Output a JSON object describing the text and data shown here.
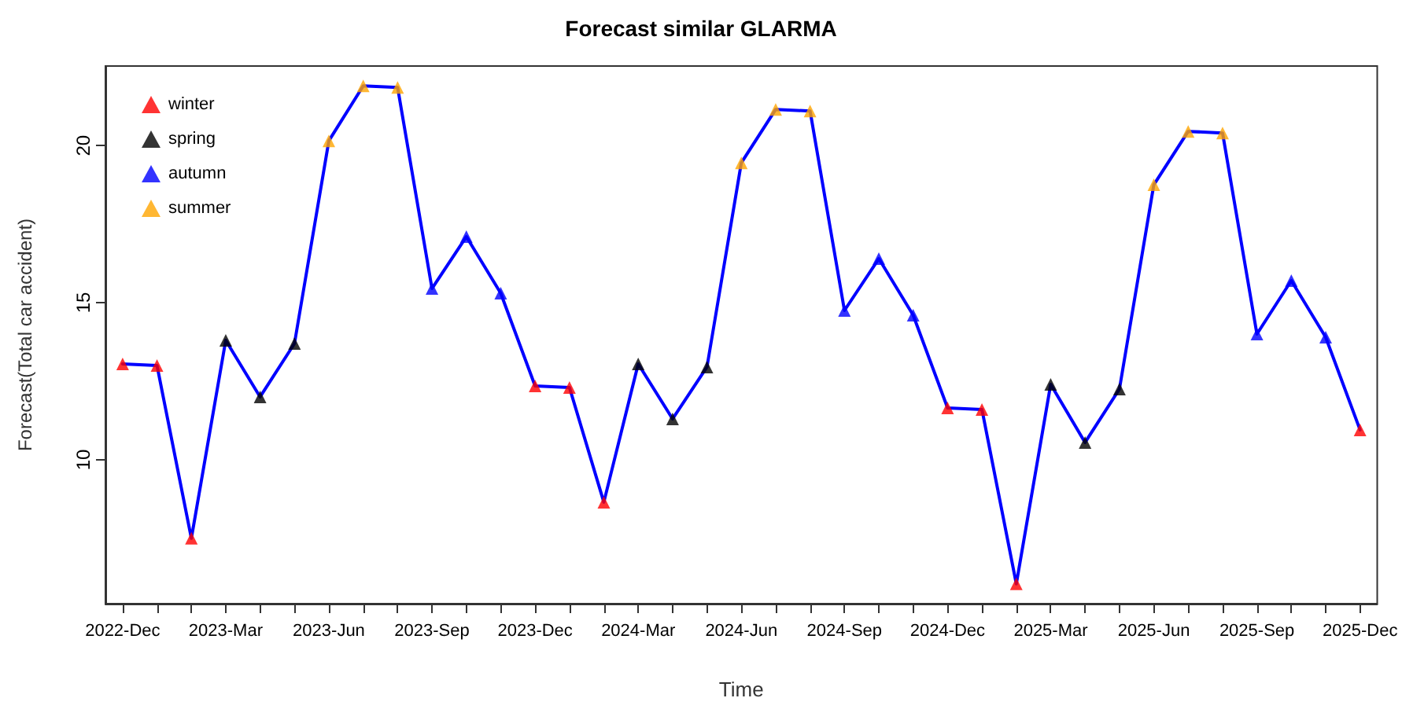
{
  "chart_data": {
    "type": "line",
    "title": "Forecast similar GLARMA",
    "xlabel": "Time",
    "ylabel": "Forecast(Total car accident)",
    "categories": [
      "2022-Dec",
      null,
      null,
      "2023-Mar",
      null,
      null,
      "2023-Jun",
      null,
      null,
      "2023-Sep",
      null,
      null,
      "2023-Dec",
      null,
      null,
      "2024-Mar",
      null,
      null,
      "2024-Jun",
      null,
      null,
      "2024-Sep",
      null,
      null,
      "2024-Dec",
      null,
      null,
      "2025-Mar",
      null,
      null,
      "2025-Jun",
      null,
      null,
      "2025-Sep",
      null,
      null,
      "2025-Dec"
    ],
    "series": [
      {
        "color": "#0000ff",
        "marker": "none",
        "values": [
          13.05,
          13.0,
          7.5,
          13.8,
          12.0,
          13.7,
          20.15,
          21.9,
          21.85,
          15.45,
          17.1,
          15.3,
          12.35,
          12.3,
          8.65,
          13.05,
          11.3,
          12.95,
          19.45,
          21.15,
          21.1,
          14.75,
          16.4,
          14.6,
          11.65,
          11.6,
          6.05,
          12.4,
          10.55,
          12.25,
          18.75,
          20.45,
          20.4,
          14.0,
          15.7,
          13.9,
          10.95
        ]
      },
      {
        "type": "scatter",
        "name": "winter",
        "color": "#ff0000",
        "marker": "triangle",
        "values": [
          13.05,
          13.0,
          7.5,
          null,
          null,
          null,
          null,
          null,
          null,
          null,
          null,
          null,
          12.35,
          12.3,
          8.65,
          null,
          null,
          null,
          null,
          null,
          null,
          null,
          null,
          null,
          11.65,
          11.6,
          6.05,
          null,
          null,
          null,
          null,
          null,
          null,
          null,
          null,
          null,
          10.95
        ]
      },
      {
        "type": "scatter",
        "name": "spring",
        "color": "#000000",
        "marker": "triangle",
        "values": [
          null,
          null,
          null,
          13.8,
          12.0,
          13.7,
          null,
          null,
          null,
          null,
          null,
          null,
          null,
          null,
          null,
          13.05,
          11.3,
          12.95,
          null,
          null,
          null,
          null,
          null,
          null,
          null,
          null,
          null,
          12.4,
          10.55,
          12.25,
          null,
          null,
          null,
          null,
          null,
          null,
          null
        ]
      },
      {
        "type": "scatter",
        "name": "autumn",
        "color": "#0000ff",
        "marker": "triangle",
        "values": [
          null,
          null,
          null,
          null,
          null,
          null,
          null,
          null,
          null,
          15.45,
          17.1,
          15.3,
          null,
          null,
          null,
          null,
          null,
          null,
          null,
          null,
          null,
          14.75,
          16.4,
          14.6,
          null,
          null,
          null,
          null,
          null,
          null,
          null,
          null,
          null,
          14.0,
          15.7,
          13.9,
          null
        ]
      },
      {
        "type": "scatter",
        "name": "summer",
        "color": "#ffa500",
        "marker": "triangle",
        "values": [
          null,
          null,
          null,
          null,
          null,
          null,
          20.15,
          21.9,
          21.85,
          null,
          null,
          null,
          null,
          null,
          null,
          null,
          null,
          null,
          19.45,
          21.15,
          21.1,
          null,
          null,
          null,
          null,
          null,
          null,
          null,
          null,
          null,
          18.75,
          20.45,
          20.4,
          null,
          null,
          null,
          null
        ]
      }
    ],
    "ylim": [
      5.42,
      22.53
    ],
    "yticks": [
      10,
      15,
      20
    ],
    "grid": false,
    "legend": "top left"
  }
}
